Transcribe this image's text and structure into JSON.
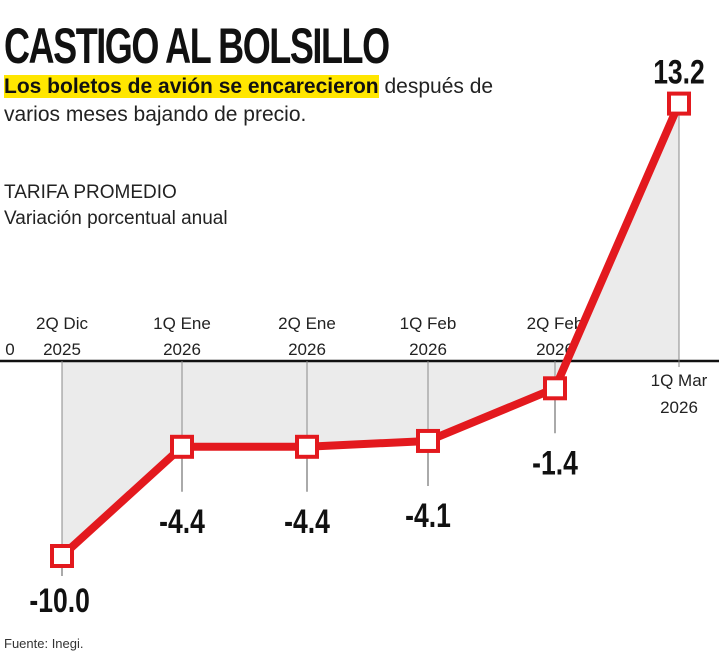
{
  "title": "CASTIGO AL BOLSILLO",
  "subtitle_highlight": "Los boletos de avión se encarecieron",
  "subtitle_rest": " después de varios meses bajando de precio.",
  "source": "Fuente: Inegi.",
  "colors": {
    "line": "#e3191e",
    "fill": "#e6e6e6",
    "highlight": "#ffe600"
  },
  "chart_data": {
    "type": "line",
    "title": "TARIFA PROMEDIO",
    "subtitle": "Variación porcentual anual",
    "y_tick_labels": [
      "0"
    ],
    "categories": [
      [
        "2Q Dic",
        "2025"
      ],
      [
        "1Q Ene",
        "2026"
      ],
      [
        "2Q Ene",
        "2026"
      ],
      [
        "1Q Feb",
        "2026"
      ],
      [
        "2Q Feb",
        "2026"
      ],
      [
        "1Q Mar",
        "2026"
      ]
    ],
    "values": [
      -10.0,
      -4.4,
      -4.4,
      -4.1,
      -1.4,
      13.2
    ],
    "labels": [
      "-10.0",
      "-4.4",
      "-4.4",
      "-4.1",
      "-1.4",
      "13.2"
    ],
    "grid": false
  }
}
